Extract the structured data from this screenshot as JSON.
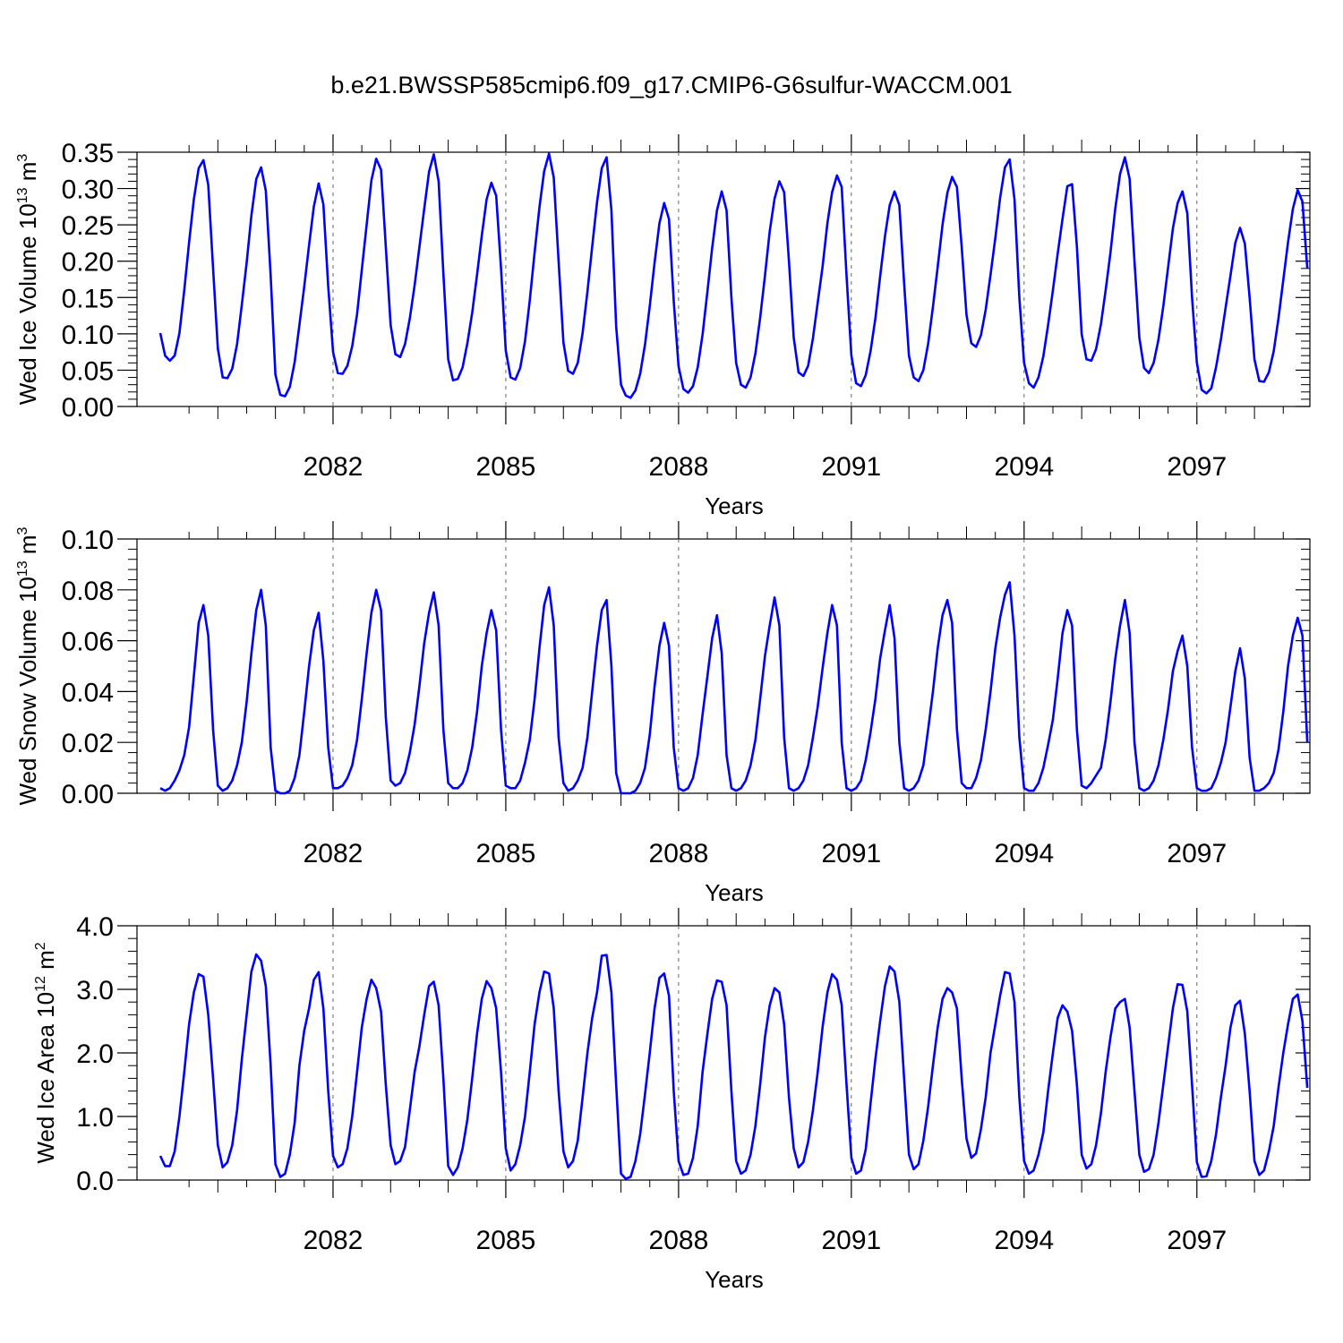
{
  "title": "b.e21.BWSSP585cmip6.f09_g17.CMIP6-G6sulfur-WACCM.001",
  "chart_data": [
    {
      "type": "line",
      "title": "",
      "ylabel": {
        "text": "Wed Ice Volume 10",
        "exp": "13",
        "unit": " m",
        "unit_exp": "3"
      },
      "xlabel": "Years",
      "xlim": [
        2079,
        2098.9
      ],
      "ylim": [
        0,
        0.35
      ],
      "yticks": [
        0.0,
        0.05,
        0.1,
        0.15,
        0.2,
        0.25,
        0.3,
        0.35
      ],
      "ytick_labels": [
        "0.00",
        "0.05",
        "0.10",
        "0.15",
        "0.20",
        "0.25",
        "0.30",
        "0.35"
      ],
      "xticks": [
        2082,
        2085,
        2088,
        2091,
        2094,
        2097
      ],
      "xtick_labels": [
        "2082",
        "2085",
        "2088",
        "2091",
        "2094",
        "2097"
      ],
      "color": "#0000ff",
      "grid": "dashed vertical at major x ticks",
      "series": [
        {
          "x_start": 2079.0,
          "dx": 0.0833333,
          "values": [
            0.101,
            0.07,
            0.063,
            0.07,
            0.101,
            0.16,
            0.226,
            0.285,
            0.328,
            0.339,
            0.305,
            0.19,
            0.08,
            0.04,
            0.039,
            0.052,
            0.086,
            0.14,
            0.198,
            0.263,
            0.313,
            0.329,
            0.297,
            0.18,
            0.044,
            0.016,
            0.014,
            0.027,
            0.061,
            0.112,
            0.165,
            0.222,
            0.275,
            0.307,
            0.278,
            0.165,
            0.075,
            0.046,
            0.045,
            0.056,
            0.083,
            0.127,
            0.188,
            0.25,
            0.311,
            0.341,
            0.326,
            0.22,
            0.112,
            0.072,
            0.068,
            0.086,
            0.121,
            0.167,
            0.219,
            0.272,
            0.323,
            0.347,
            0.31,
            0.183,
            0.065,
            0.036,
            0.038,
            0.054,
            0.087,
            0.129,
            0.181,
            0.235,
            0.285,
            0.308,
            0.29,
            0.19,
            0.077,
            0.04,
            0.037,
            0.053,
            0.09,
            0.146,
            0.212,
            0.274,
            0.324,
            0.348,
            0.315,
            0.2,
            0.088,
            0.049,
            0.045,
            0.06,
            0.101,
            0.158,
            0.22,
            0.281,
            0.328,
            0.343,
            0.27,
            0.11,
            0.03,
            0.015,
            0.012,
            0.022,
            0.045,
            0.085,
            0.138,
            0.198,
            0.252,
            0.28,
            0.258,
            0.145,
            0.055,
            0.024,
            0.019,
            0.028,
            0.054,
            0.099,
            0.158,
            0.218,
            0.27,
            0.296,
            0.27,
            0.15,
            0.06,
            0.03,
            0.026,
            0.04,
            0.073,
            0.122,
            0.18,
            0.241,
            0.286,
            0.31,
            0.295,
            0.2,
            0.095,
            0.047,
            0.042,
            0.056,
            0.094,
            0.143,
            0.192,
            0.252,
            0.295,
            0.318,
            0.302,
            0.18,
            0.07,
            0.032,
            0.028,
            0.043,
            0.076,
            0.121,
            0.179,
            0.234,
            0.277,
            0.296,
            0.277,
            0.17,
            0.07,
            0.04,
            0.035,
            0.05,
            0.086,
            0.137,
            0.192,
            0.25,
            0.294,
            0.316,
            0.302,
            0.22,
            0.126,
            0.087,
            0.082,
            0.098,
            0.133,
            0.181,
            0.232,
            0.287,
            0.329,
            0.34,
            0.285,
            0.15,
            0.06,
            0.032,
            0.026,
            0.04,
            0.069,
            0.112,
            0.16,
            0.21,
            0.258,
            0.303,
            0.306,
            0.22,
            0.1,
            0.065,
            0.063,
            0.079,
            0.113,
            0.16,
            0.212,
            0.273,
            0.32,
            0.343,
            0.313,
            0.2,
            0.095,
            0.053,
            0.046,
            0.06,
            0.092,
            0.138,
            0.191,
            0.245,
            0.28,
            0.296,
            0.266,
            0.15,
            0.06,
            0.023,
            0.018,
            0.025,
            0.054,
            0.092,
            0.136,
            0.18,
            0.225,
            0.246,
            0.224,
            0.15,
            0.065,
            0.035,
            0.034,
            0.047,
            0.076,
            0.121,
            0.174,
            0.226,
            0.272,
            0.298,
            0.282,
            0.19
          ]
        }
      ]
    },
    {
      "type": "line",
      "title": "",
      "ylabel": {
        "text": "Wed Snow Volume 10",
        "exp": "13",
        "unit": " m",
        "unit_exp": "3"
      },
      "xlabel": "Years",
      "xlim": [
        2079,
        2098.9
      ],
      "ylim": [
        0,
        0.1
      ],
      "yticks": [
        0.0,
        0.02,
        0.04,
        0.06,
        0.08,
        0.1
      ],
      "ytick_labels": [
        "0.00",
        "0.02",
        "0.04",
        "0.06",
        "0.08",
        "0.10"
      ],
      "xticks": [
        2082,
        2085,
        2088,
        2091,
        2094,
        2097
      ],
      "xtick_labels": [
        "2082",
        "2085",
        "2088",
        "2091",
        "2094",
        "2097"
      ],
      "color": "#0000ff",
      "grid": "dashed vertical at major x ticks",
      "series": [
        {
          "x_start": 2079.0,
          "dx": 0.0833333,
          "values": [
            0.002,
            0.001,
            0.002,
            0.005,
            0.009,
            0.015,
            0.026,
            0.046,
            0.067,
            0.074,
            0.062,
            0.025,
            0.003,
            0.001,
            0.002,
            0.005,
            0.011,
            0.02,
            0.036,
            0.055,
            0.072,
            0.08,
            0.066,
            0.018,
            0.001,
            0.0,
            0.0,
            0.001,
            0.006,
            0.015,
            0.032,
            0.05,
            0.064,
            0.071,
            0.052,
            0.018,
            0.002,
            0.002,
            0.003,
            0.006,
            0.011,
            0.021,
            0.037,
            0.055,
            0.071,
            0.08,
            0.072,
            0.03,
            0.005,
            0.003,
            0.004,
            0.008,
            0.016,
            0.027,
            0.042,
            0.059,
            0.071,
            0.079,
            0.066,
            0.025,
            0.004,
            0.002,
            0.002,
            0.004,
            0.009,
            0.018,
            0.032,
            0.05,
            0.063,
            0.072,
            0.064,
            0.025,
            0.003,
            0.002,
            0.002,
            0.005,
            0.012,
            0.021,
            0.037,
            0.057,
            0.074,
            0.081,
            0.066,
            0.022,
            0.004,
            0.001,
            0.002,
            0.005,
            0.01,
            0.022,
            0.04,
            0.058,
            0.072,
            0.076,
            0.05,
            0.008,
            0.0,
            0.0,
            0.0,
            0.001,
            0.004,
            0.01,
            0.023,
            0.042,
            0.058,
            0.067,
            0.058,
            0.018,
            0.002,
            0.001,
            0.002,
            0.006,
            0.015,
            0.031,
            0.046,
            0.061,
            0.07,
            0.055,
            0.015,
            0.002,
            0.001,
            0.002,
            0.005,
            0.011,
            0.021,
            0.037,
            0.054,
            0.066,
            0.077,
            0.066,
            0.022,
            0.002,
            0.001,
            0.002,
            0.005,
            0.011,
            0.022,
            0.034,
            0.049,
            0.063,
            0.074,
            0.066,
            0.02,
            0.002,
            0.001,
            0.002,
            0.005,
            0.013,
            0.024,
            0.037,
            0.053,
            0.064,
            0.074,
            0.061,
            0.02,
            0.002,
            0.001,
            0.002,
            0.005,
            0.011,
            0.025,
            0.04,
            0.057,
            0.07,
            0.076,
            0.067,
            0.025,
            0.004,
            0.002,
            0.002,
            0.006,
            0.013,
            0.025,
            0.04,
            0.057,
            0.069,
            0.078,
            0.083,
            0.062,
            0.022,
            0.002,
            0.001,
            0.001,
            0.004,
            0.01,
            0.019,
            0.029,
            0.045,
            0.063,
            0.072,
            0.066,
            0.025,
            0.003,
            0.002,
            0.004,
            0.007,
            0.01,
            0.021,
            0.036,
            0.053,
            0.066,
            0.076,
            0.063,
            0.02,
            0.002,
            0.001,
            0.002,
            0.005,
            0.011,
            0.021,
            0.033,
            0.048,
            0.056,
            0.062,
            0.05,
            0.018,
            0.002,
            0.001,
            0.001,
            0.002,
            0.006,
            0.012,
            0.02,
            0.034,
            0.048,
            0.057,
            0.045,
            0.014,
            0.001,
            0.001,
            0.002,
            0.004,
            0.008,
            0.017,
            0.032,
            0.05,
            0.062,
            0.069,
            0.062,
            0.02
          ]
        }
      ]
    },
    {
      "type": "line",
      "title": "",
      "ylabel": {
        "text": "Wed Ice Area 10",
        "exp": "12",
        "unit": " m",
        "unit_exp": "2"
      },
      "xlabel": "Years",
      "xlim": [
        2079,
        2098.9
      ],
      "ylim": [
        0,
        4.0
      ],
      "yticks": [
        0.0,
        1.0,
        2.0,
        3.0,
        4.0
      ],
      "ytick_labels": [
        "0.0",
        "1.0",
        "2.0",
        "3.0",
        "4.0"
      ],
      "xticks": [
        2082,
        2085,
        2088,
        2091,
        2094,
        2097
      ],
      "xtick_labels": [
        "2082",
        "2085",
        "2088",
        "2091",
        "2094",
        "2097"
      ],
      "color": "#0000ff",
      "grid": "dashed vertical at major x ticks",
      "series": [
        {
          "x_start": 2079.0,
          "dx": 0.0833333,
          "values": [
            0.38,
            0.22,
            0.22,
            0.45,
            1.0,
            1.7,
            2.45,
            2.95,
            3.24,
            3.2,
            2.6,
            1.6,
            0.55,
            0.2,
            0.28,
            0.55,
            1.1,
            1.9,
            2.6,
            3.28,
            3.55,
            3.45,
            3.05,
            1.8,
            0.25,
            0.05,
            0.1,
            0.4,
            0.9,
            1.8,
            2.35,
            2.7,
            3.15,
            3.27,
            2.7,
            1.4,
            0.38,
            0.2,
            0.25,
            0.5,
            1.0,
            1.7,
            2.4,
            2.85,
            3.15,
            3.02,
            2.65,
            1.5,
            0.55,
            0.25,
            0.3,
            0.52,
            1.1,
            1.7,
            2.1,
            2.6,
            3.05,
            3.12,
            2.75,
            1.6,
            0.22,
            0.08,
            0.2,
            0.5,
            0.95,
            1.6,
            2.3,
            2.85,
            3.13,
            3.02,
            2.7,
            1.7,
            0.5,
            0.15,
            0.25,
            0.55,
            1.0,
            1.7,
            2.45,
            2.95,
            3.28,
            3.25,
            2.7,
            1.4,
            0.45,
            0.2,
            0.3,
            0.62,
            1.3,
            2.0,
            2.55,
            2.95,
            3.53,
            3.54,
            2.95,
            1.5,
            0.1,
            0.02,
            0.05,
            0.3,
            0.72,
            1.35,
            2.0,
            2.7,
            3.18,
            3.25,
            2.9,
            1.4,
            0.3,
            0.08,
            0.1,
            0.35,
            0.85,
            1.7,
            2.3,
            2.85,
            3.14,
            3.12,
            2.75,
            1.4,
            0.3,
            0.1,
            0.15,
            0.4,
            0.85,
            1.5,
            2.25,
            2.75,
            3.02,
            2.95,
            2.45,
            1.3,
            0.5,
            0.2,
            0.28,
            0.6,
            1.1,
            1.7,
            2.4,
            2.95,
            3.24,
            3.15,
            2.75,
            1.5,
            0.35,
            0.1,
            0.15,
            0.48,
            1.2,
            1.9,
            2.5,
            3.05,
            3.36,
            3.28,
            2.8,
            1.6,
            0.4,
            0.17,
            0.25,
            0.62,
            1.15,
            1.8,
            2.4,
            2.85,
            3.02,
            2.95,
            2.7,
            1.6,
            0.65,
            0.35,
            0.42,
            0.8,
            1.3,
            2.0,
            2.45,
            2.9,
            3.27,
            3.25,
            2.8,
            1.3,
            0.3,
            0.1,
            0.15,
            0.4,
            0.75,
            1.4,
            2.0,
            2.55,
            2.75,
            2.65,
            2.35,
            1.5,
            0.4,
            0.18,
            0.25,
            0.55,
            1.05,
            1.7,
            2.25,
            2.7,
            2.8,
            2.85,
            2.4,
            1.4,
            0.4,
            0.13,
            0.17,
            0.4,
            0.9,
            1.5,
            2.1,
            2.7,
            3.08,
            3.07,
            2.65,
            1.5,
            0.28,
            0.05,
            0.06,
            0.3,
            0.72,
            1.3,
            1.8,
            2.4,
            2.75,
            2.82,
            2.3,
            1.4,
            0.3,
            0.08,
            0.15,
            0.45,
            0.85,
            1.45,
            2.0,
            2.45,
            2.85,
            2.92,
            2.5,
            1.45
          ]
        }
      ]
    }
  ]
}
